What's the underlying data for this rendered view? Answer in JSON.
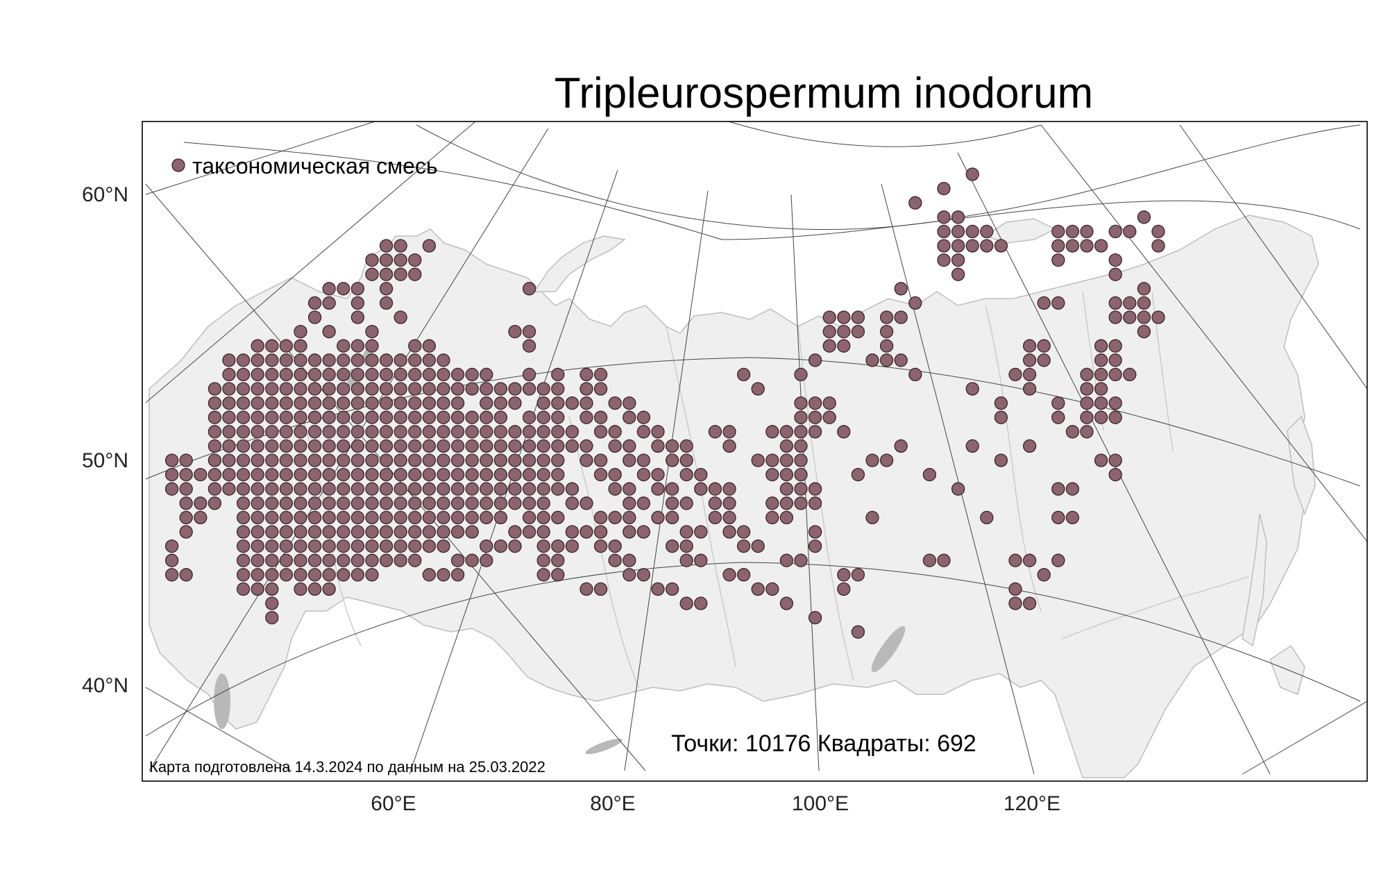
{
  "title": "Tripleurospermum inodorum",
  "legend": {
    "label": "таксономическая смесь",
    "color": "#8b6470"
  },
  "stats": "Точки: 10176 Квадраты: 692",
  "footnote": "Карта подготовлена 14.3.2024 по данным на 25.03.2022",
  "lat_labels": [
    "60°N",
    "50°N",
    "40°N"
  ],
  "lon_labels": [
    "60°E",
    "80°E",
    "100°E",
    "120°E"
  ],
  "colors": {
    "land": "#efefef",
    "marker": "#8b6470",
    "marker_edge": "#3a2228"
  }
}
